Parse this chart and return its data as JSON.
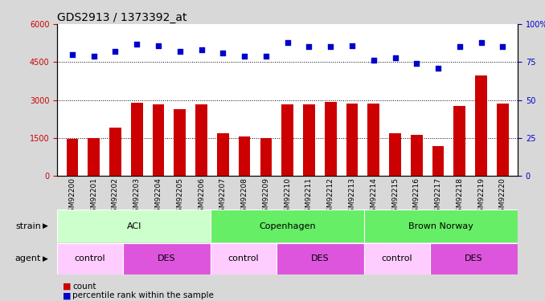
{
  "title": "GDS2913 / 1373392_at",
  "samples": [
    "GSM92200",
    "GSM92201",
    "GSM92202",
    "GSM92203",
    "GSM92204",
    "GSM92205",
    "GSM92206",
    "GSM92207",
    "GSM92208",
    "GSM92209",
    "GSM92210",
    "GSM92211",
    "GSM92212",
    "GSM92213",
    "GSM92214",
    "GSM92215",
    "GSM92216",
    "GSM92217",
    "GSM92218",
    "GSM92219",
    "GSM92220"
  ],
  "counts": [
    1480,
    1490,
    1900,
    2880,
    2820,
    2650,
    2830,
    1700,
    1580,
    1510,
    2830,
    2820,
    2940,
    2870,
    2870,
    1700,
    1620,
    1180,
    2780,
    3960,
    2870
  ],
  "percentiles": [
    80,
    79,
    82,
    87,
    86,
    82,
    83,
    81,
    79,
    79,
    88,
    85,
    85,
    86,
    76,
    78,
    74,
    71,
    85,
    88,
    85
  ],
  "bar_color": "#cc0000",
  "dot_color": "#0000cc",
  "ylim_left": [
    0,
    6000
  ],
  "ylim_right": [
    0,
    100
  ],
  "yticks_left": [
    0,
    1500,
    3000,
    4500,
    6000
  ],
  "yticks_right": [
    0,
    25,
    50,
    75,
    100
  ],
  "yticklabels_right": [
    "0",
    "25",
    "50",
    "75",
    "100%"
  ],
  "strain_groups": [
    {
      "label": "ACI",
      "start": 0,
      "end": 7,
      "color": "#ccffcc"
    },
    {
      "label": "Copenhagen",
      "start": 7,
      "end": 14,
      "color": "#66ee66"
    },
    {
      "label": "Brown Norway",
      "start": 14,
      "end": 21,
      "color": "#66ee66"
    }
  ],
  "agent_groups": [
    {
      "label": "control",
      "start": 0,
      "end": 3,
      "color": "#ffccff"
    },
    {
      "label": "DES",
      "start": 3,
      "end": 7,
      "color": "#dd55dd"
    },
    {
      "label": "control",
      "start": 7,
      "end": 10,
      "color": "#ffccff"
    },
    {
      "label": "DES",
      "start": 10,
      "end": 14,
      "color": "#dd55dd"
    },
    {
      "label": "control",
      "start": 14,
      "end": 17,
      "color": "#ffccff"
    },
    {
      "label": "DES",
      "start": 17,
      "end": 21,
      "color": "#dd55dd"
    }
  ],
  "strain_label": "strain",
  "agent_label": "agent",
  "legend_count_label": "count",
  "legend_percentile_label": "percentile rank within the sample",
  "bg_color": "#d8d8d8",
  "plot_bg_color": "#ffffff",
  "xtick_bg": "#cccccc",
  "title_fontsize": 10,
  "tick_fontsize": 6.5,
  "bar_width": 0.55
}
